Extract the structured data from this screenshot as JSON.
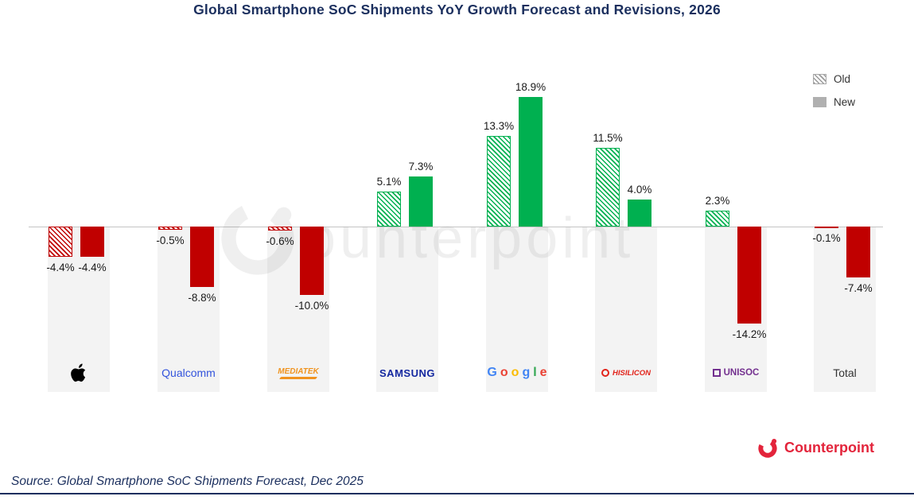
{
  "title": "Global Smartphone SoC Shipments YoY Growth Forecast and Revisions, 2026",
  "source_note": "Source: Global Smartphone SoC Shipments Forecast, Dec 2025",
  "watermark_text": "ounterpoint",
  "brand": {
    "name": "Counterpoint",
    "color": "#e3243b"
  },
  "colors": {
    "positive": "#00b050",
    "negative": "#c00000",
    "band": "#f3f3f3",
    "axis": "#c4c4c4",
    "title": "#1b2f5e",
    "legend_swatch": "#b0b0b0"
  },
  "chart_data": {
    "type": "bar",
    "title": "Global Smartphone SoC Shipments YoY Growth Forecast and Revisions, 2026",
    "categories": [
      "Apple",
      "Qualcomm",
      "MediaTek",
      "Samsung",
      "Google",
      "HiSilicon",
      "UNISOC",
      "Total"
    ],
    "series": [
      {
        "name": "Old",
        "style": "hatched",
        "values": [
          -4.4,
          -0.5,
          -0.6,
          5.1,
          13.3,
          11.5,
          2.3,
          -0.1
        ]
      },
      {
        "name": "New",
        "style": "solid",
        "values": [
          -4.4,
          -8.8,
          -10.0,
          7.3,
          18.9,
          4.0,
          -14.2,
          -7.4
        ]
      }
    ],
    "value_suffix": "%",
    "ylim": [
      -16,
      20
    ],
    "grid": false,
    "legend_position": "top-right"
  },
  "logos": [
    {
      "id": "apple",
      "type": "apple-icon"
    },
    {
      "id": "qualcomm",
      "type": "text",
      "text": "Qualcomm",
      "color": "#3253dc",
      "size": 14,
      "weight": 400
    },
    {
      "id": "mediatek",
      "type": "text",
      "text": "MEDIATEK",
      "color": "#f0931f",
      "size": 10,
      "weight": 700,
      "italic": true,
      "underline": true
    },
    {
      "id": "samsung",
      "type": "text",
      "text": "SAMSUNG",
      "color": "#1428a0",
      "size": 13,
      "weight": 700,
      "spacing": 0.5
    },
    {
      "id": "google",
      "type": "letters",
      "size": 16,
      "weight": 600,
      "letters": [
        {
          "ch": "G",
          "color": "#4285F4"
        },
        {
          "ch": "o",
          "color": "#EA4335"
        },
        {
          "ch": "o",
          "color": "#FBBC05"
        },
        {
          "ch": "g",
          "color": "#4285F4"
        },
        {
          "ch": "l",
          "color": "#34A853"
        },
        {
          "ch": "e",
          "color": "#EA4335"
        }
      ]
    },
    {
      "id": "hisilicon",
      "type": "glyph-text",
      "glyph": "ring",
      "text": "HISILICON",
      "color": "#e2231a",
      "size": 9.5,
      "weight": 700,
      "italic": true
    },
    {
      "id": "unisoc",
      "type": "glyph-text",
      "glyph": "square",
      "text": "UNISOC",
      "color": "#73308f",
      "size": 11.5,
      "weight": 700
    },
    {
      "id": "total",
      "type": "text",
      "text": "Total",
      "color": "#333333",
      "size": 14,
      "weight": 400
    }
  ]
}
